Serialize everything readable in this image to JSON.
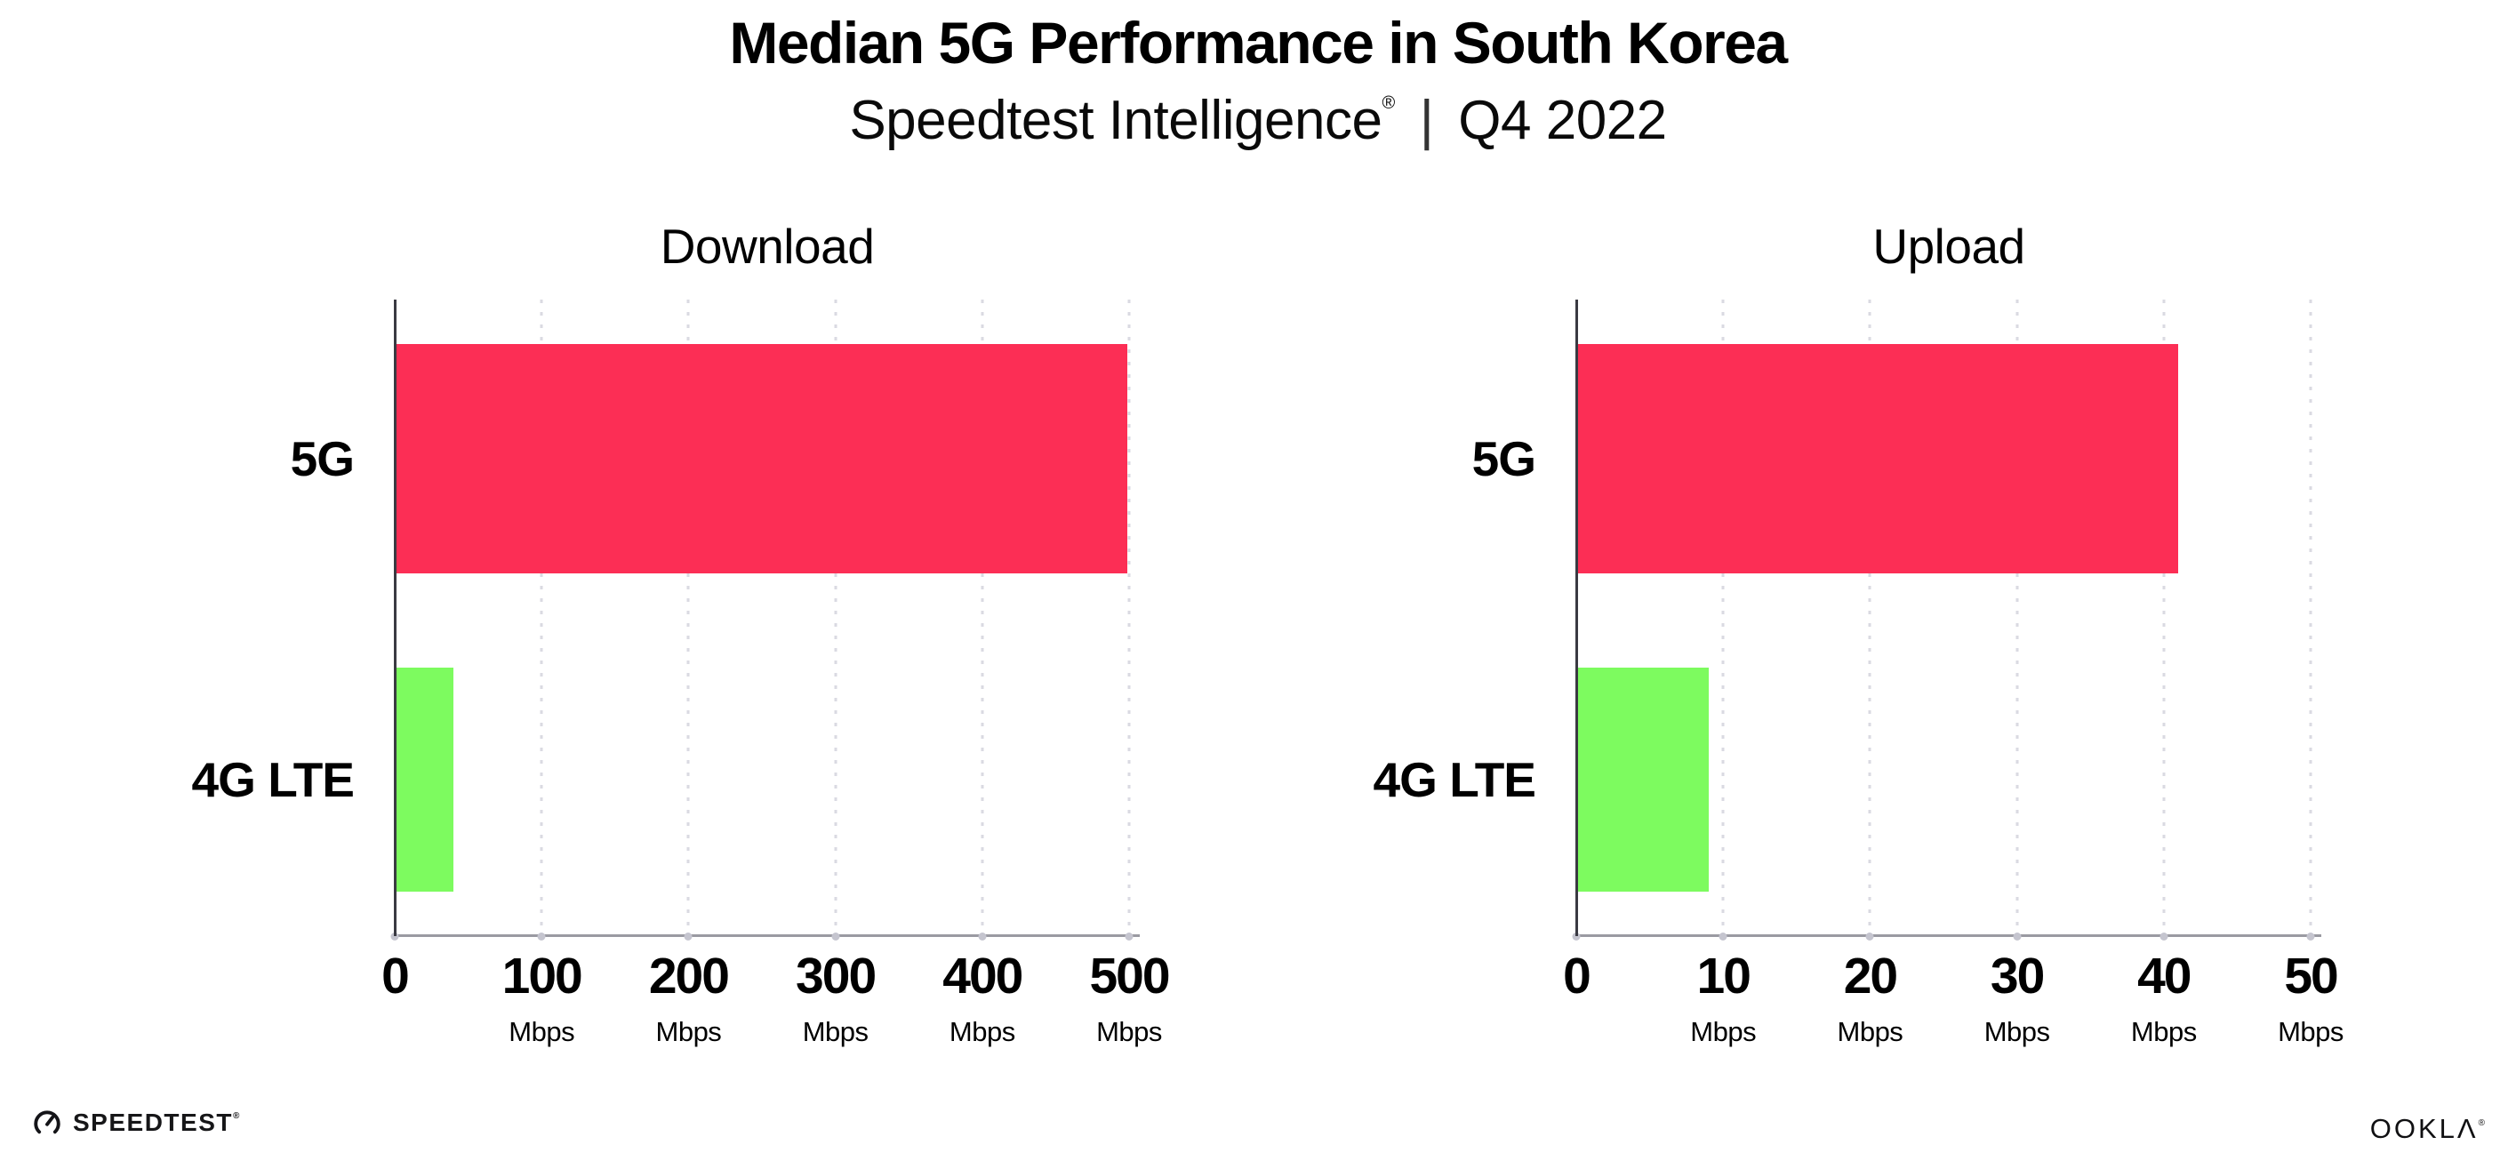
{
  "header": {
    "title": "Median 5G Performance in South Korea",
    "subtitle": {
      "brand": "Speedtest Intelligence",
      "registered_mark": "®",
      "separator": "|",
      "period": "Q4 2022"
    }
  },
  "chart_data": [
    {
      "type": "bar",
      "orientation": "horizontal",
      "title": "Download",
      "categories": [
        "5G",
        "4G LTE"
      ],
      "values": [
        499,
        40
      ],
      "unit": "Mbps",
      "xlim": [
        0,
        500
      ],
      "xticks": [
        0,
        100,
        200,
        300,
        400,
        500
      ],
      "tick_unit_label": "Mbps",
      "bar_colors": [
        "#FC2E55",
        "#7DFB5F"
      ],
      "grid": "dotted-vertical",
      "legend": "none"
    },
    {
      "type": "bar",
      "orientation": "horizontal",
      "title": "Upload",
      "categories": [
        "5G",
        "4G LTE"
      ],
      "values": [
        41,
        9
      ],
      "unit": "Mbps",
      "xlim": [
        0,
        50
      ],
      "xticks": [
        0,
        10,
        20,
        30,
        40,
        50
      ],
      "tick_unit_label": "Mbps",
      "bar_colors": [
        "#FC2E55",
        "#7DFB5F"
      ],
      "grid": "dotted-vertical",
      "legend": "none"
    }
  ],
  "footer": {
    "speedtest_wordmark": "SPEEDTEST",
    "speedtest_mark": "®",
    "ookla_wordmark": "OOKLΛ",
    "ookla_mark": "®"
  },
  "colors": {
    "background": "#FFFFFF",
    "bar_5g": "#FC2E55",
    "bar_4g_lte": "#7DFB5F",
    "y_axis_line": "#3A3A42",
    "x_axis_line": "#9A9AA2",
    "gridline_dots": "#DADAE2",
    "axis_tick_dots": "#C5C5CF",
    "text": "#000000"
  }
}
